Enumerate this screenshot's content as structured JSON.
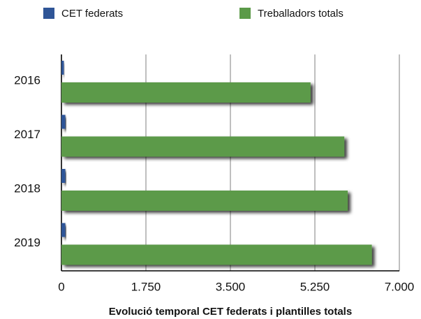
{
  "chart_data": {
    "type": "hbar",
    "title": "Evolució temporal CET federats i plantilles totals",
    "categories": [
      "2016",
      "2017",
      "2018",
      "2019"
    ],
    "series": [
      {
        "name": "CET federats",
        "color": "#2f5597",
        "values": [
          50,
          80,
          80,
          80
        ]
      },
      {
        "name": "Treballadors totals",
        "color": "#5b9a48",
        "values": [
          5160,
          5860,
          5930,
          6430
        ]
      }
    ],
    "xlim": [
      0,
      7000
    ],
    "xticks": [
      0,
      {
        "value": 1750,
        "label": "1.750"
      },
      {
        "value": 3500,
        "label": "3.500"
      },
      {
        "value": 5250,
        "label": "5.250"
      },
      {
        "value": 7000,
        "label": "7.000"
      }
    ],
    "grid": true,
    "legend": "top"
  }
}
